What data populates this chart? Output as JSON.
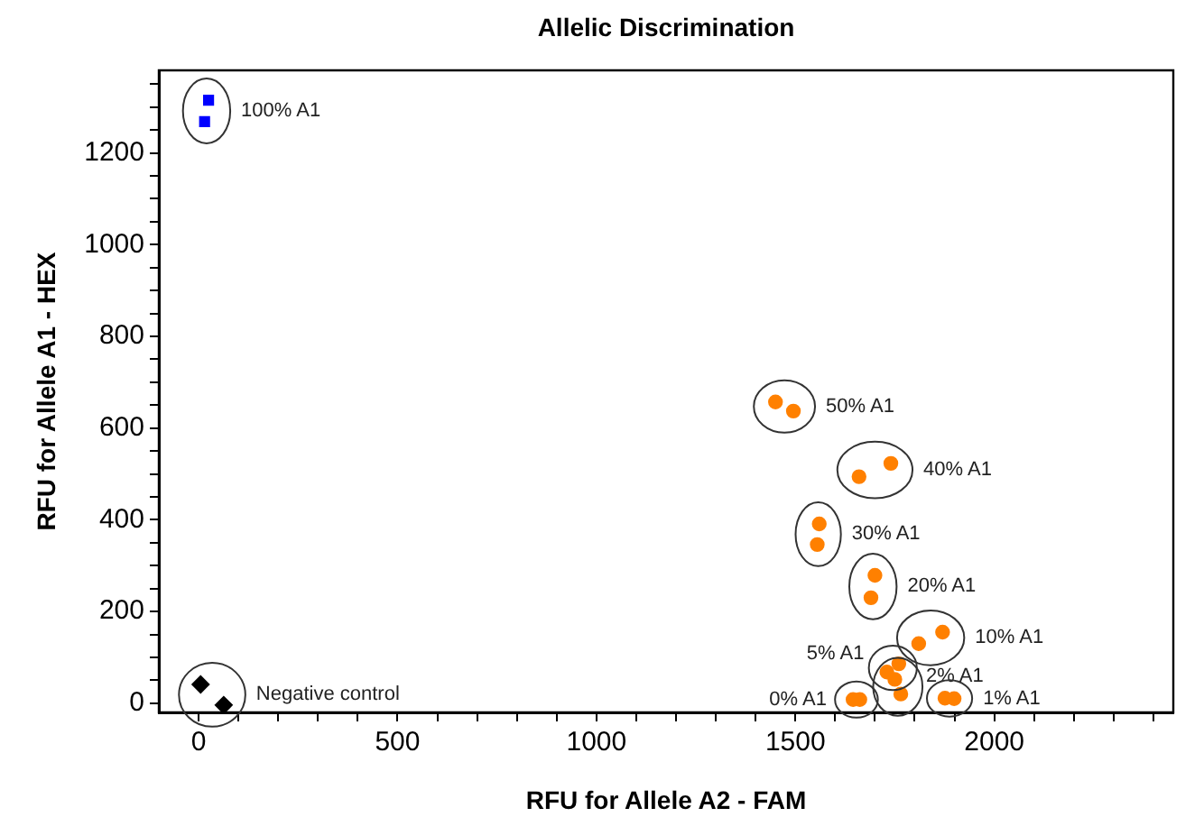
{
  "chart_data": {
    "type": "scatter",
    "title": "Allelic Discrimination",
    "xlabel": "RFU for Allele A2 - FAM",
    "ylabel": "RFU for Allele A1 - HEX",
    "xlim": [
      -100,
      2450
    ],
    "ylim": [
      -20,
      1380
    ],
    "xticks": [
      0,
      {
        "value": 100,
        "label": null
      },
      {
        "value": 200,
        "label": null
      },
      {
        "value": 300,
        "label": null
      },
      {
        "value": 400,
        "label": null
      },
      500,
      {
        "value": 600,
        "label": null
      },
      {
        "value": 700,
        "label": null
      },
      {
        "value": 800,
        "label": null
      },
      {
        "value": 900,
        "label": null
      },
      1000,
      {
        "value": 1100,
        "label": null
      },
      {
        "value": 1200,
        "label": null
      },
      {
        "value": 1300,
        "label": null
      },
      {
        "value": 1400,
        "label": null
      },
      1500,
      {
        "value": 1600,
        "label": null
      },
      {
        "value": 1700,
        "label": null
      },
      {
        "value": 1800,
        "label": null
      },
      {
        "value": 1900,
        "label": null
      },
      2000,
      {
        "value": 2100,
        "label": null
      },
      {
        "value": 2200,
        "label": null
      },
      {
        "value": 2300,
        "label": null
      },
      {
        "value": 2400,
        "label": null
      }
    ],
    "yticks": [
      0,
      {
        "value": 50,
        "label": null
      },
      {
        "value": 100,
        "label": null
      },
      {
        "value": 150,
        "label": null
      },
      200,
      {
        "value": 250,
        "label": null
      },
      {
        "value": 300,
        "label": null
      },
      {
        "value": 350,
        "label": null
      },
      400,
      {
        "value": 450,
        "label": null
      },
      {
        "value": 500,
        "label": null
      },
      {
        "value": 550,
        "label": null
      },
      600,
      {
        "value": 650,
        "label": null
      },
      {
        "value": 700,
        "label": null
      },
      {
        "value": 750,
        "label": null
      },
      800,
      {
        "value": 850,
        "label": null
      },
      {
        "value": 900,
        "label": null
      },
      {
        "value": 950,
        "label": null
      },
      1000,
      {
        "value": 1050,
        "label": null
      },
      {
        "value": 1100,
        "label": null
      },
      {
        "value": 1150,
        "label": null
      },
      1200,
      {
        "value": 1250,
        "label": null
      },
      {
        "value": 1300,
        "label": null
      },
      {
        "value": 1350,
        "label": null
      }
    ],
    "grid": false,
    "legend": false,
    "series": [
      {
        "name": "100% A1",
        "color": "#0000ff",
        "marker": "square",
        "x": [
          25,
          15
        ],
        "values": [
          1315,
          1268
        ]
      },
      {
        "name": "50% A1",
        "color": "#ff8000",
        "marker": "circle",
        "x": [
          1450,
          1495
        ],
        "values": [
          657,
          637
        ]
      },
      {
        "name": "40% A1",
        "color": "#ff8000",
        "marker": "circle",
        "x": [
          1660,
          1740
        ],
        "values": [
          494,
          523
        ]
      },
      {
        "name": "30% A1",
        "color": "#ff8000",
        "marker": "circle",
        "x": [
          1560,
          1555
        ],
        "values": [
          391,
          346
        ]
      },
      {
        "name": "20% A1",
        "color": "#ff8000",
        "marker": "circle",
        "x": [
          1700,
          1690
        ],
        "values": [
          279,
          230
        ]
      },
      {
        "name": "10% A1",
        "color": "#ff8000",
        "marker": "circle",
        "x": [
          1810,
          1870
        ],
        "values": [
          130,
          155
        ]
      },
      {
        "name": "5% A1",
        "color": "#ff8000",
        "marker": "circle",
        "x": [
          1730,
          1760
        ],
        "values": [
          68,
          86
        ]
      },
      {
        "name": "2% A1",
        "color": "#ff8000",
        "marker": "circle",
        "x": [
          1750,
          1765
        ],
        "values": [
          52,
          20
        ]
      },
      {
        "name": "0% A1",
        "color": "#ff8000",
        "marker": "circle",
        "x": [
          1645,
          1662
        ],
        "values": [
          8,
          8
        ]
      },
      {
        "name": "1% A1",
        "color": "#ff8000",
        "marker": "circle",
        "x": [
          1876,
          1899
        ],
        "values": [
          11,
          10
        ]
      },
      {
        "name": "Negative control",
        "color": "#000000",
        "marker": "diamond",
        "x": [
          5,
          63
        ],
        "values": [
          41,
          -4
        ]
      }
    ]
  }
}
